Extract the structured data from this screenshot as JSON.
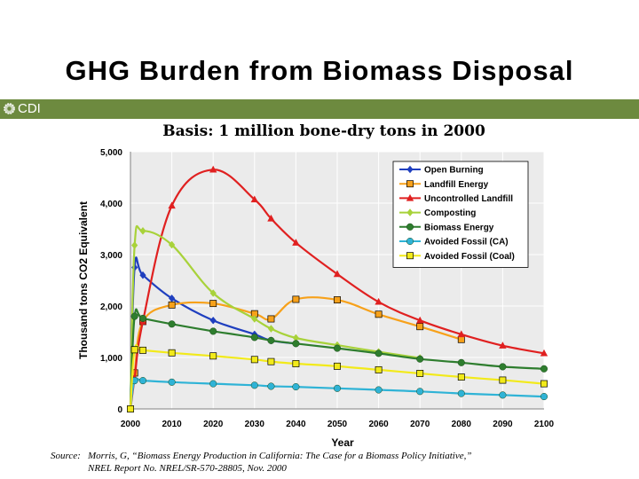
{
  "slide": {
    "title": "GHG Burden from Biomass Disposal",
    "logo_text": "CDI",
    "band_color": "#6d8a3f",
    "subtitle": "Basis: 1 million bone-dry tons in 2000",
    "source_label": "Source:",
    "source_line1": "Morris, G, “Biomass Energy Production in California: The Case for a Biomass Policy Initiative,”",
    "source_line2": "NREL Report No. NREL/SR-570-28805, Nov. 2000"
  },
  "chart_data": {
    "type": "line",
    "title": "",
    "xlabel": "Year",
    "ylabel": "Thousand tons CO2 Equivalent",
    "xlim": [
      2000,
      2100
    ],
    "ylim": [
      0,
      5000
    ],
    "xticks": [
      2000,
      2010,
      2020,
      2030,
      2040,
      2050,
      2060,
      2070,
      2080,
      2090,
      2100
    ],
    "xtick_labels": [
      "2000",
      "2010",
      "2020",
      "2030",
      "2040",
      "2050",
      "2060",
      "2070",
      "2080",
      "2090",
      "2100"
    ],
    "yticks": [
      0,
      1000,
      2000,
      3000,
      4000,
      5000
    ],
    "ytick_labels": [
      "0",
      "1,000",
      "2,000",
      "3,000",
      "4,000",
      "5,000"
    ],
    "grid": true,
    "legend_position": "top-right",
    "series": [
      {
        "name": "Open Burning",
        "color": "#1f3fbf",
        "marker": "diamond",
        "x": [
          2000,
          2001,
          2003,
          2010,
          2020,
          2030,
          2034,
          2040
        ],
        "y": [
          0,
          2750,
          2600,
          2150,
          1720,
          1450,
          1330,
          1270
        ]
      },
      {
        "name": "Landfill Energy",
        "color": "#f7a11a",
        "marker": "square",
        "x": [
          2000,
          2001,
          2003,
          2010,
          2020,
          2030,
          2034,
          2040,
          2050,
          2060,
          2070,
          2080
        ],
        "y": [
          0,
          700,
          1700,
          2020,
          2050,
          1850,
          1750,
          2130,
          2120,
          1840,
          1600,
          1350
        ]
      },
      {
        "name": "Uncontrolled Landfill",
        "color": "#e02020",
        "marker": "triangle",
        "x": [
          2000,
          2001,
          2003,
          2010,
          2020,
          2030,
          2034,
          2040,
          2050,
          2060,
          2070,
          2080,
          2090,
          2100
        ],
        "y": [
          0,
          600,
          1700,
          3950,
          4650,
          4070,
          3700,
          3230,
          2620,
          2080,
          1720,
          1450,
          1230,
          1080
        ]
      },
      {
        "name": "Composting",
        "color": "#a8d23a",
        "marker": "diamond",
        "x": [
          2000,
          2001,
          2003,
          2010,
          2020,
          2030,
          2034,
          2040,
          2050,
          2060,
          2070
        ],
        "y": [
          0,
          3180,
          3460,
          3190,
          2250,
          1750,
          1560,
          1380,
          1240,
          1110,
          990
        ]
      },
      {
        "name": "Biomass Energy",
        "color": "#2e7d2e",
        "marker": "circle",
        "x": [
          2000,
          2001,
          2003,
          2010,
          2020,
          2030,
          2034,
          2040,
          2050,
          2060,
          2070,
          2080,
          2090,
          2100
        ],
        "y": [
          0,
          1800,
          1760,
          1650,
          1510,
          1390,
          1330,
          1270,
          1180,
          1080,
          970,
          900,
          820,
          780
        ]
      },
      {
        "name": "Avoided Fossil (CA)",
        "color": "#2fb3d6",
        "marker": "circle",
        "x": [
          2000,
          2001,
          2003,
          2010,
          2020,
          2030,
          2034,
          2040,
          2050,
          2060,
          2070,
          2080,
          2090,
          2100
        ],
        "y": [
          0,
          550,
          550,
          520,
          490,
          460,
          440,
          430,
          400,
          370,
          340,
          300,
          270,
          240
        ]
      },
      {
        "name": "Avoided Fossil (Coal)",
        "color": "#f2ea1a",
        "marker": "square",
        "x": [
          2000,
          2001,
          2003,
          2010,
          2020,
          2030,
          2034,
          2040,
          2050,
          2060,
          2070,
          2080,
          2090,
          2100
        ],
        "y": [
          0,
          1150,
          1140,
          1090,
          1030,
          960,
          920,
          880,
          830,
          760,
          690,
          620,
          560,
          490
        ]
      }
    ]
  }
}
